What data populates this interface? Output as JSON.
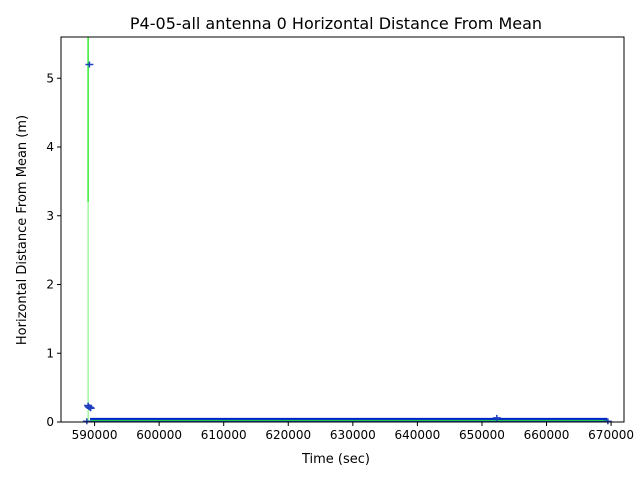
{
  "chart_data": {
    "type": "scatter",
    "title": "P4-05-all antenna 0 Horizontal Distance From Mean",
    "xlabel": "Time (sec)",
    "ylabel": "Horizontal Distance From Mean (m)",
    "xlim": [
      584800,
      672000
    ],
    "ylim": [
      0,
      5.6
    ],
    "x_ticks": [
      590000,
      600000,
      610000,
      620000,
      630000,
      640000,
      650000,
      660000,
      670000
    ],
    "x_tick_labels": [
      "590000",
      "600000",
      "610000",
      "620000",
      "630000",
      "640000",
      "650000",
      "660000",
      "670000"
    ],
    "y_ticks": [
      0,
      1,
      2,
      3,
      4,
      5
    ],
    "y_tick_labels": [
      "0",
      "1",
      "2",
      "3",
      "4",
      "5"
    ],
    "grid": false,
    "colors": {
      "marker": "#1f3fbf",
      "dense_band": "#0022cc",
      "error_bar": "#33ee33"
    },
    "series": [
      {
        "points": [
          {
            "x": 589200,
            "y": 5.2
          },
          {
            "x": 589100,
            "y": 0.22
          },
          {
            "x": 589300,
            "y": 0.21
          },
          {
            "x": 589000,
            "y": 0.24
          },
          {
            "x": 589400,
            "y": 0.2
          },
          {
            "x": 652300,
            "y": 0.06
          },
          {
            "x": 588800,
            "y": 0.01
          },
          {
            "x": 669500,
            "y": 0.01
          }
        ],
        "band": {
          "x_start": 589300,
          "x_end": 669400,
          "y_low": 0.0,
          "y_high": 0.06
        },
        "error_bars": [
          {
            "x": 589000,
            "y_low": 3.2,
            "y_high": 5.6
          },
          {
            "x": 589000,
            "y_low": 0.0,
            "y_high": 3.2
          }
        ]
      }
    ]
  }
}
